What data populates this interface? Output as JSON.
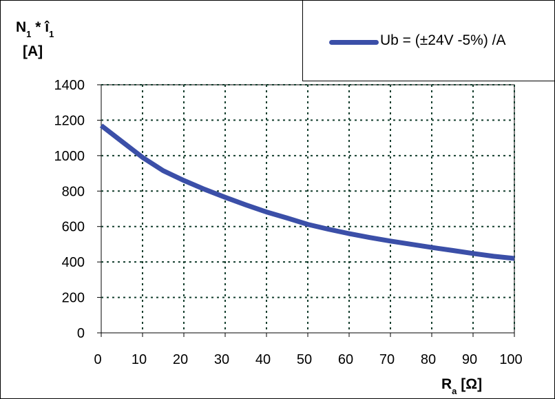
{
  "chart_data": {
    "type": "line",
    "ylabel": {
      "parts": [
        {
          "text": "N",
          "sub": false
        },
        {
          "text": "1",
          "sub": true
        },
        {
          "text": " * î",
          "sub": false
        },
        {
          "text": "1",
          "sub": true
        }
      ],
      "unit": "[A]"
    },
    "xlabel": {
      "parts": [
        {
          "text": "R",
          "sub": false
        },
        {
          "text": "a",
          "sub": true
        },
        {
          "text": " [Ω]",
          "sub": false
        }
      ]
    },
    "xlim": [
      0,
      100
    ],
    "ylim": [
      0,
      1400
    ],
    "xticks": [
      0,
      10,
      20,
      30,
      40,
      50,
      60,
      70,
      80,
      90,
      100
    ],
    "yticks": [
      0,
      200,
      400,
      600,
      800,
      1000,
      1200,
      1400
    ],
    "grid": true,
    "legend_position": "top-right",
    "series": [
      {
        "name": "Ub = (±24V -5%) /A",
        "color": "#3B4FA8",
        "x": [
          0,
          5,
          10,
          15,
          20,
          25,
          30,
          35,
          40,
          45,
          50,
          55,
          60,
          65,
          70,
          75,
          80,
          85,
          90,
          95,
          100
        ],
        "y": [
          1170,
          1080,
          990,
          915,
          860,
          810,
          765,
          722,
          682,
          648,
          612,
          585,
          560,
          538,
          518,
          500,
          482,
          465,
          448,
          432,
          420
        ]
      }
    ]
  }
}
